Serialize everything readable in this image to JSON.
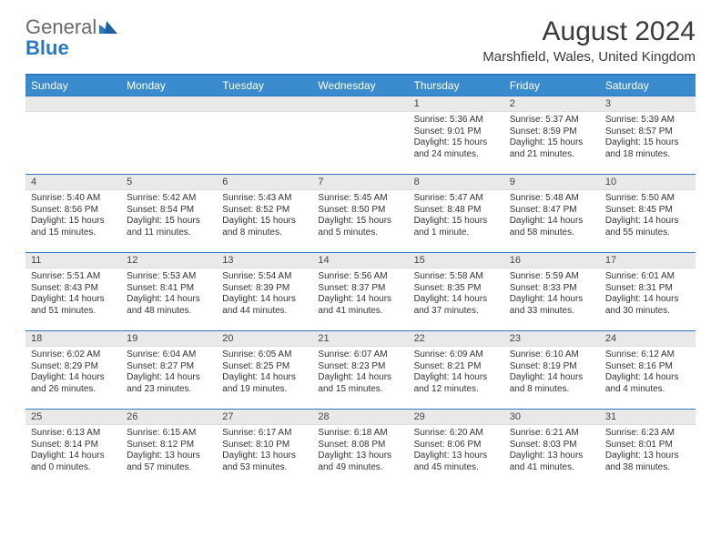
{
  "brand": {
    "word1": "General",
    "word2": "Blue"
  },
  "title": "August 2024",
  "location": "Marshfield, Wales, United Kingdom",
  "colors": {
    "header_bg": "#3a8bce",
    "header_border": "#2b77c0",
    "daynum_bg": "#e9e9e9",
    "text": "#333333",
    "brand_gray": "#6a6a6a",
    "brand_blue": "#2b77c0"
  },
  "fonts": {
    "title_size_pt": 22,
    "location_size_pt": 11,
    "weekday_size_pt": 9,
    "daynum_size_pt": 8,
    "body_size_pt": 7.5
  },
  "weekdays": [
    "Sunday",
    "Monday",
    "Tuesday",
    "Wednesday",
    "Thursday",
    "Friday",
    "Saturday"
  ],
  "weeks": [
    [
      null,
      null,
      null,
      null,
      {
        "n": "1",
        "sunrise": "5:36 AM",
        "sunset": "9:01 PM",
        "daylight": "15 hours and 24 minutes."
      },
      {
        "n": "2",
        "sunrise": "5:37 AM",
        "sunset": "8:59 PM",
        "daylight": "15 hours and 21 minutes."
      },
      {
        "n": "3",
        "sunrise": "5:39 AM",
        "sunset": "8:57 PM",
        "daylight": "15 hours and 18 minutes."
      }
    ],
    [
      {
        "n": "4",
        "sunrise": "5:40 AM",
        "sunset": "8:56 PM",
        "daylight": "15 hours and 15 minutes."
      },
      {
        "n": "5",
        "sunrise": "5:42 AM",
        "sunset": "8:54 PM",
        "daylight": "15 hours and 11 minutes."
      },
      {
        "n": "6",
        "sunrise": "5:43 AM",
        "sunset": "8:52 PM",
        "daylight": "15 hours and 8 minutes."
      },
      {
        "n": "7",
        "sunrise": "5:45 AM",
        "sunset": "8:50 PM",
        "daylight": "15 hours and 5 minutes."
      },
      {
        "n": "8",
        "sunrise": "5:47 AM",
        "sunset": "8:48 PM",
        "daylight": "15 hours and 1 minute."
      },
      {
        "n": "9",
        "sunrise": "5:48 AM",
        "sunset": "8:47 PM",
        "daylight": "14 hours and 58 minutes."
      },
      {
        "n": "10",
        "sunrise": "5:50 AM",
        "sunset": "8:45 PM",
        "daylight": "14 hours and 55 minutes."
      }
    ],
    [
      {
        "n": "11",
        "sunrise": "5:51 AM",
        "sunset": "8:43 PM",
        "daylight": "14 hours and 51 minutes."
      },
      {
        "n": "12",
        "sunrise": "5:53 AM",
        "sunset": "8:41 PM",
        "daylight": "14 hours and 48 minutes."
      },
      {
        "n": "13",
        "sunrise": "5:54 AM",
        "sunset": "8:39 PM",
        "daylight": "14 hours and 44 minutes."
      },
      {
        "n": "14",
        "sunrise": "5:56 AM",
        "sunset": "8:37 PM",
        "daylight": "14 hours and 41 minutes."
      },
      {
        "n": "15",
        "sunrise": "5:58 AM",
        "sunset": "8:35 PM",
        "daylight": "14 hours and 37 minutes."
      },
      {
        "n": "16",
        "sunrise": "5:59 AM",
        "sunset": "8:33 PM",
        "daylight": "14 hours and 33 minutes."
      },
      {
        "n": "17",
        "sunrise": "6:01 AM",
        "sunset": "8:31 PM",
        "daylight": "14 hours and 30 minutes."
      }
    ],
    [
      {
        "n": "18",
        "sunrise": "6:02 AM",
        "sunset": "8:29 PM",
        "daylight": "14 hours and 26 minutes."
      },
      {
        "n": "19",
        "sunrise": "6:04 AM",
        "sunset": "8:27 PM",
        "daylight": "14 hours and 23 minutes."
      },
      {
        "n": "20",
        "sunrise": "6:05 AM",
        "sunset": "8:25 PM",
        "daylight": "14 hours and 19 minutes."
      },
      {
        "n": "21",
        "sunrise": "6:07 AM",
        "sunset": "8:23 PM",
        "daylight": "14 hours and 15 minutes."
      },
      {
        "n": "22",
        "sunrise": "6:09 AM",
        "sunset": "8:21 PM",
        "daylight": "14 hours and 12 minutes."
      },
      {
        "n": "23",
        "sunrise": "6:10 AM",
        "sunset": "8:19 PM",
        "daylight": "14 hours and 8 minutes."
      },
      {
        "n": "24",
        "sunrise": "6:12 AM",
        "sunset": "8:16 PM",
        "daylight": "14 hours and 4 minutes."
      }
    ],
    [
      {
        "n": "25",
        "sunrise": "6:13 AM",
        "sunset": "8:14 PM",
        "daylight": "14 hours and 0 minutes."
      },
      {
        "n": "26",
        "sunrise": "6:15 AM",
        "sunset": "8:12 PM",
        "daylight": "13 hours and 57 minutes."
      },
      {
        "n": "27",
        "sunrise": "6:17 AM",
        "sunset": "8:10 PM",
        "daylight": "13 hours and 53 minutes."
      },
      {
        "n": "28",
        "sunrise": "6:18 AM",
        "sunset": "8:08 PM",
        "daylight": "13 hours and 49 minutes."
      },
      {
        "n": "29",
        "sunrise": "6:20 AM",
        "sunset": "8:06 PM",
        "daylight": "13 hours and 45 minutes."
      },
      {
        "n": "30",
        "sunrise": "6:21 AM",
        "sunset": "8:03 PM",
        "daylight": "13 hours and 41 minutes."
      },
      {
        "n": "31",
        "sunrise": "6:23 AM",
        "sunset": "8:01 PM",
        "daylight": "13 hours and 38 minutes."
      }
    ]
  ],
  "labels": {
    "sunrise_prefix": "Sunrise: ",
    "sunset_prefix": "Sunset: ",
    "daylight_prefix": "Daylight: "
  }
}
